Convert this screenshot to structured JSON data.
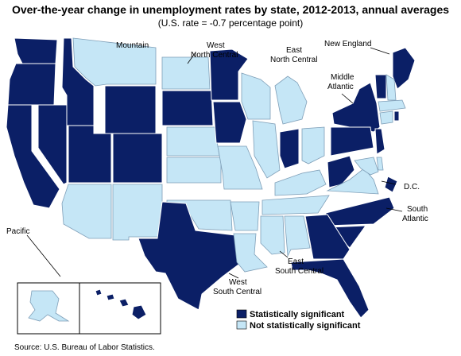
{
  "title": "Over-the-year change in unemployment rates by state, 2012-2013, annual averages",
  "subtitle": "(U.S. rate = -0.7 percentage point)",
  "source": "Source: U.S. Bureau of Labor Statistics.",
  "colors": {
    "significant": "#0b1f66",
    "not_significant": "#c5e6f6"
  },
  "legend": {
    "significant_label": "Statistically significant",
    "not_significant_label": "Not statistically significant"
  },
  "regions": {
    "mountain": "Mountain",
    "west_north_central_1": "West",
    "west_north_central_2": "North Central",
    "east_north_central_1": "East",
    "east_north_central_2": "North Central",
    "new_england": "New England",
    "middle_atlantic_1": "Middle",
    "middle_atlantic_2": "Atlantic",
    "pacific": "Pacific",
    "dc": "D.C.",
    "south_atlantic_1": "South",
    "south_atlantic_2": "Atlantic",
    "west_south_central_1": "West",
    "west_south_central_2": "South Central",
    "east_south_central_1": "East",
    "east_south_central_2": "South Central"
  },
  "states": {
    "WA": "significant",
    "OR": "significant",
    "CA": "significant",
    "ID": "significant",
    "NV": "significant",
    "UT": "significant",
    "AZ": "not_significant",
    "MT": "not_significant",
    "WY": "significant",
    "CO": "significant",
    "NM": "not_significant",
    "ND": "not_significant",
    "SD": "significant",
    "NE": "not_significant",
    "KS": "not_significant",
    "MN": "significant",
    "IA": "significant",
    "MO": "not_significant",
    "WI": "not_significant",
    "MI": "not_significant",
    "IL": "not_significant",
    "IN": "significant",
    "OH": "not_significant",
    "OK": "not_significant",
    "TX": "significant",
    "AR": "not_significant",
    "LA": "not_significant",
    "KY": "not_significant",
    "TN": "not_significant",
    "MS": "not_significant",
    "AL": "not_significant",
    "WV": "significant",
    "VA": "not_significant",
    "MD": "not_significant",
    "DE": "not_significant",
    "DC": "significant",
    "NC": "significant",
    "SC": "significant",
    "GA": "significant",
    "FL": "significant",
    "NY": "significant",
    "PA": "significant",
    "NJ": "significant",
    "ME": "significant",
    "VT": "significant",
    "NH": "not_significant",
    "MA": "not_significant",
    "CT": "not_significant",
    "RI": "significant",
    "AK": "not_significant",
    "HI": "significant"
  }
}
